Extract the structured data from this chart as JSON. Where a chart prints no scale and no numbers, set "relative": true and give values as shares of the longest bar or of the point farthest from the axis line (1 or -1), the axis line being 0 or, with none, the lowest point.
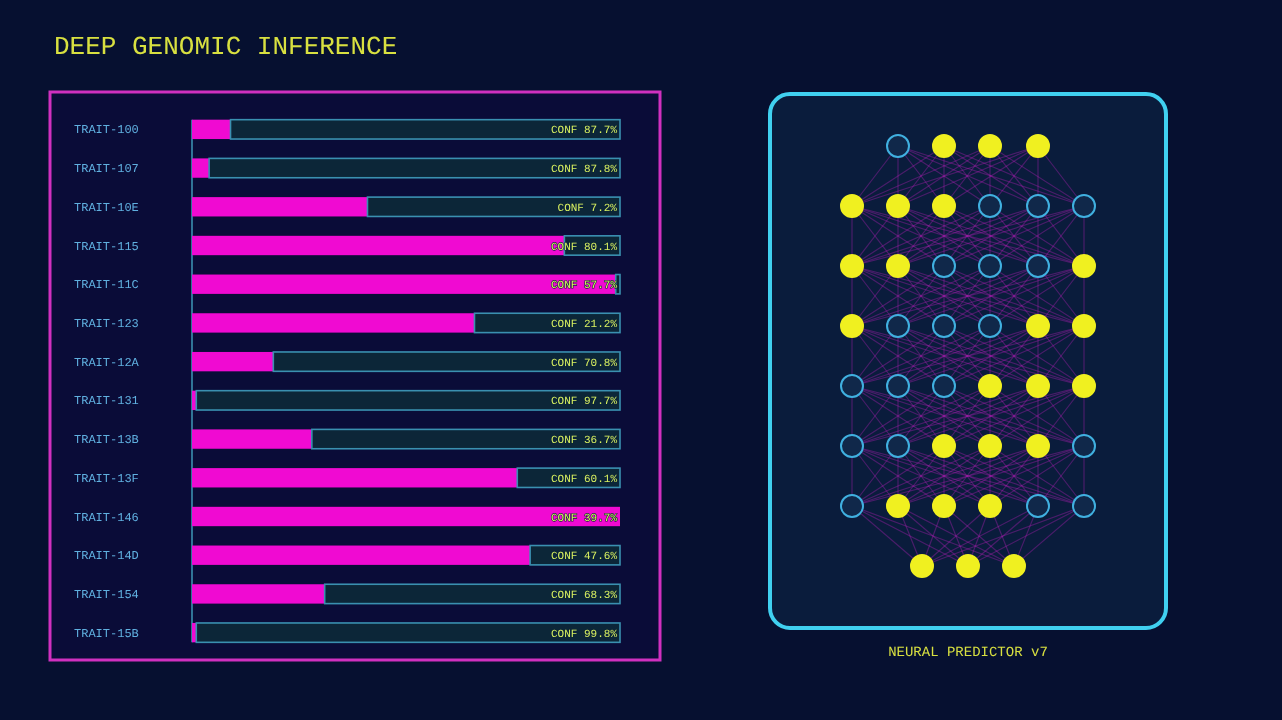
{
  "chart_data": {
    "type": "bar",
    "orientation": "horizontal",
    "relative": true,
    "stacked": true,
    "title": "DEEP GENOMIC INFERENCE",
    "categories": [
      "TRAIT-100",
      "TRAIT-107",
      "TRAIT-10E",
      "TRAIT-115",
      "TRAIT-11C",
      "TRAIT-123",
      "TRAIT-12A",
      "TRAIT-131",
      "TRAIT-13B",
      "TRAIT-13F",
      "TRAIT-146",
      "TRAIT-14D",
      "TRAIT-154",
      "TRAIT-15B"
    ],
    "series": [
      {
        "color": "#f00ad2",
        "values": [
          0.09,
          0.04,
          0.41,
          0.87,
          0.99,
          0.66,
          0.19,
          0.01,
          0.28,
          0.76,
          1,
          0.79,
          0.31,
          0.01
        ]
      },
      {
        "color": "#0c2638",
        "values": [
          0.91,
          0.96,
          0.59,
          0.13,
          0.01,
          0.34,
          0.81,
          0.99,
          0.72,
          0.24,
          0,
          0.21,
          0.69,
          0.99
        ]
      }
    ],
    "annotations": [
      "CONF 87.7%",
      "CONF 87.8%",
      "CONF 7.2%",
      "CONF 80.1%",
      "CONF 57.7%",
      "CONF 21.2%",
      "CONF 70.8%",
      "CONF 97.7%",
      "CONF 36.7%",
      "CONF 60.1%",
      "CONF 39.7%",
      "CONF 47.6%",
      "CONF 68.3%",
      "CONF 99.8%",
      "NEURAL PREDICTOR v7"
    ]
  }
}
